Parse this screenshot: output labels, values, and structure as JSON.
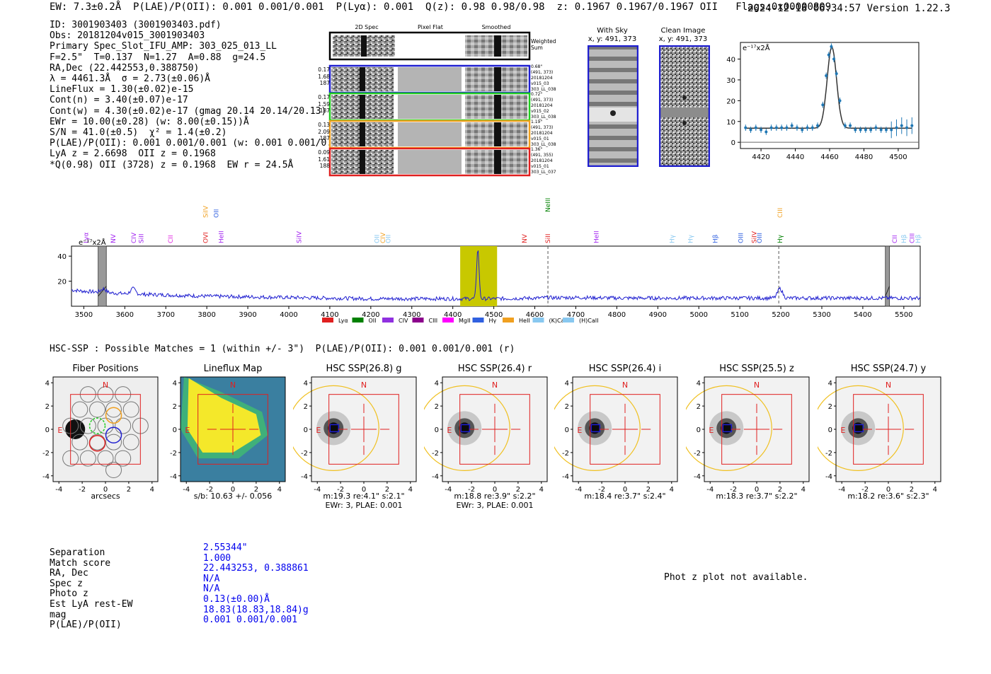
{
  "header": {
    "line": "EW: 7.3±0.2Å  P(LAE)/P(OII): 0.001 0.001/0.001  P(Lyα): 0.001  Q(z): 0.98 0.98/0.98  z: 0.1967 0.1967/0.1967 OII   Flags:0x00000809",
    "timestamp": "2024-12-18 06:34:57  Version 1.22.3"
  },
  "info": [
    "ID: 3001903403 (3001903403.pdf)",
    "Obs: 20181204v015_3001903403",
    "Primary Spec_Slot_IFU_AMP: 303_025_013_LL",
    "F=2.5\"  T=0.137  N=1.27  A=0.88  g=24.5",
    "RA,Dec (22.442553,0.388750)",
    "λ = 4461.3Å  σ = 2.73(±0.06)Å",
    "LineFlux = 1.30(±0.02)e-15",
    "Cont(n) = 3.40(±0.07)e-17",
    "Cont(w) = 4.30(±0.02)e-17 (gmag 20.14 20.14/20.13)",
    "EWr = 10.00(±0.28) (w: 8.00(±0.15))Å",
    "S/N = 41.0(±0.5)  χ² = 1.4(±0.2)",
    "P(LAE)/P(OII): 0.001 0.001/0.001 (w: 0.001 0.001/0.001)",
    "LyA z = 2.6698  OII z = 0.1968",
    "*Q(0.98) OII (3728) z = 0.1968  EW r = 24.5Å"
  ],
  "cutouts": {
    "col_titles": [
      "2D Spec",
      "Pixel Flat",
      "Smoothed"
    ],
    "weighted_label": "Weighted Sum",
    "rows": [
      {
        "left": [
          "0.17",
          "1.68",
          "187"
        ],
        "right": [
          "0.68\"",
          "(491, 373)",
          "20181204",
          "v015_03",
          "303_LL_038"
        ],
        "color": "#1f1fd0"
      },
      {
        "left": [
          "0.17",
          "1.59",
          "187"
        ],
        "right": [
          "0.72\"",
          "(491, 373)",
          "20181204",
          "v015_02",
          "303_LL_038"
        ],
        "color": "#22cc22"
      },
      {
        "left": [
          "0.13",
          "2.09",
          "187"
        ],
        "right": [
          "1.19\"",
          "(491, 373)",
          "20181204",
          "v015_01",
          "303_LL_038"
        ],
        "color": "#f0a020"
      },
      {
        "left": [
          "0.09",
          "1.61",
          "188"
        ],
        "right": [
          "1.36\"",
          "(491, 355)",
          "20181204",
          "v015_01",
          "303_LL_037"
        ],
        "color": "#e02020"
      }
    ]
  },
  "sky_panels": [
    {
      "title": "With Sky",
      "coords": "x, y: 491, 373"
    },
    {
      "title": "Clean Image",
      "coords": "x, y: 491, 373"
    }
  ],
  "colors": {
    "blue_line": "#1f1fd0",
    "fit_line": "#333333",
    "err_points": "#1f77b4",
    "highlight": "#c8c800",
    "match_text": "#0000ee",
    "red_box": "#e02020",
    "yellow_ellipse": "#f0c020"
  },
  "chart_data": [
    {
      "type": "scatter",
      "name": "line-fit",
      "ylabel": "e⁻¹⁷x2Å",
      "xlim": [
        4408,
        4512
      ],
      "ylim": [
        -3,
        48
      ],
      "xticks": [
        4420,
        4440,
        4460,
        4480,
        4500
      ],
      "yticks": [
        0,
        10,
        20,
        30,
        40
      ],
      "points": {
        "x": [
          4411,
          4414,
          4417,
          4420,
          4423,
          4426,
          4429,
          4432,
          4435,
          4438,
          4441,
          4444,
          4447,
          4450,
          4453,
          4456,
          4458,
          4459.5,
          4461,
          4462.5,
          4464,
          4466,
          4469,
          4472,
          4475,
          4478,
          4481,
          4484,
          4487,
          4490,
          4493,
          4496,
          4499,
          4502,
          4505,
          4508
        ],
        "y": [
          7,
          6,
          7,
          6,
          5,
          7,
          7,
          7,
          7,
          8,
          7,
          6,
          7,
          7,
          8,
          18,
          32,
          42,
          46,
          40,
          33,
          20,
          8,
          8,
          6,
          6,
          6,
          6,
          7,
          6,
          6,
          6,
          7,
          8,
          7,
          8
        ]
      },
      "fit": {
        "center": 4461.3,
        "sigma": 2.73,
        "amplitude": 39,
        "continuum": 6.8
      }
    },
    {
      "type": "line",
      "name": "full-spectrum",
      "ylabel": "e⁻¹⁷x2Å",
      "xlim": [
        3470,
        5540
      ],
      "ylim": [
        0,
        48
      ],
      "xticks": [
        3500,
        3600,
        3700,
        3800,
        3900,
        4000,
        4100,
        4200,
        4300,
        4400,
        4500,
        4600,
        4700,
        4800,
        4900,
        5000,
        5100,
        5200,
        5300,
        5400,
        5500
      ],
      "yticks": [
        20,
        40
      ],
      "continuum_profile": {
        "x": [
          3470,
          3500,
          3550,
          3600,
          3700,
          3800,
          3900,
          4000,
          4100,
          4200,
          4300,
          4400,
          4500,
          4600,
          4700,
          4800,
          4900,
          5000,
          5100,
          5200,
          5300,
          5400,
          5540
        ],
        "y": [
          13,
          12,
          11,
          10,
          9,
          8,
          7.5,
          7,
          6.5,
          6,
          6,
          6,
          6,
          6.5,
          7,
          6.5,
          6.5,
          6.5,
          6.5,
          6.5,
          6.5,
          6.5,
          6.5
        ]
      },
      "emission_peaks": [
        {
          "x": 3548,
          "y": 14
        },
        {
          "x": 3620,
          "y": 14
        },
        {
          "x": 4461,
          "y": 46
        },
        {
          "x": 4630,
          "y": 7
        },
        {
          "x": 5198,
          "y": 14
        }
      ],
      "highlight_range": [
        4418,
        4508
      ],
      "masked_ranges": [
        [
          3535,
          3555
        ],
        [
          5455,
          5465
        ]
      ],
      "dashed_lines": [
        4632,
        5195
      ],
      "line_labels": [
        {
          "text": "Lyα",
          "x": 3505,
          "color": "#a020f0",
          "row": 0
        },
        {
          "text": "NV",
          "x": 3572,
          "color": "#a020f0",
          "row": 0
        },
        {
          "text": "CIV",
          "x": 3622,
          "color": "#a020f0",
          "row": 0
        },
        {
          "text": "SiII",
          "x": 3640,
          "color": "#a020f0",
          "row": 0
        },
        {
          "text": "CII",
          "x": 3712,
          "color": "#e020e0",
          "row": 0
        },
        {
          "text": "SiIV",
          "x": 3797,
          "color": "#f0a020",
          "row": 1
        },
        {
          "text": "OII",
          "x": 3823,
          "color": "#3060e0",
          "row": 1
        },
        {
          "text": "OVI",
          "x": 3797,
          "color": "#e02020",
          "row": 0
        },
        {
          "text": "HeII",
          "x": 3835,
          "color": "#a020f0",
          "row": 0
        },
        {
          "text": "SiIV",
          "x": 4025,
          "color": "#a020f0",
          "row": 0
        },
        {
          "text": "OII",
          "x": 4215,
          "color": "#88c8f0",
          "row": 0
        },
        {
          "text": "CIV",
          "x": 4230,
          "color": "#f0a020",
          "row": 0
        },
        {
          "text": "OII",
          "x": 4243,
          "color": "#88c8f0",
          "row": 0
        },
        {
          "text": "NV",
          "x": 4575,
          "color": "#e02020",
          "row": 0
        },
        {
          "text": "NeIII",
          "x": 4632,
          "color": "#008000",
          "row": 2
        },
        {
          "text": "SiII",
          "x": 4632,
          "color": "#e02020",
          "row": 0
        },
        {
          "text": "HeII",
          "x": 4750,
          "color": "#a020f0",
          "row": 0
        },
        {
          "text": "Hγ",
          "x": 4935,
          "color": "#88c8f0",
          "row": 0
        },
        {
          "text": "Hγ",
          "x": 4980,
          "color": "#88c8f0",
          "row": 0
        },
        {
          "text": "Hβ",
          "x": 5040,
          "color": "#3060e0",
          "row": 0
        },
        {
          "text": "OIII",
          "x": 5102,
          "color": "#3060e0",
          "row": 0
        },
        {
          "text": "SiIV",
          "x": 5135,
          "color": "#e02020",
          "row": 0
        },
        {
          "text": "OIII",
          "x": 5148,
          "color": "#3060e0",
          "row": 0
        },
        {
          "text": "CIII",
          "x": 5198,
          "color": "#f0a020",
          "row": 1
        },
        {
          "text": "Hγ",
          "x": 5198,
          "color": "#008000",
          "row": 0
        },
        {
          "text": "CII",
          "x": 5478,
          "color": "#a020f0",
          "row": 0
        },
        {
          "text": "Hβ",
          "x": 5500,
          "color": "#88c8f0",
          "row": 0
        },
        {
          "text": "CIII",
          "x": 5520,
          "color": "#a020f0",
          "row": 0
        },
        {
          "text": "Hβ",
          "x": 5535,
          "color": "#88c8f0",
          "row": 0
        }
      ],
      "legend": [
        {
          "label": "Lyα",
          "color": "#e02020"
        },
        {
          "label": "OII",
          "color": "#008000"
        },
        {
          "label": "CIV",
          "color": "#9030e0"
        },
        {
          "label": "CIII",
          "color": "#8b008b"
        },
        {
          "label": "MgII",
          "color": "#ff00ff"
        },
        {
          "label": "Hγ",
          "color": "#3060e0"
        },
        {
          "label": "HeII",
          "color": "#f0a020"
        },
        {
          "label": "(K)CaII",
          "color": "#88c8f0"
        },
        {
          "label": "(H)CaII",
          "color": "#88c8f0"
        }
      ]
    }
  ],
  "hsc_header": "HSC-SSP : Possible Matches = 1 (within +/- 3\")  P(LAE)/P(OII): 0.001 0.001/0.001 (r)",
  "image_panels": [
    {
      "title": "Fiber Positions",
      "caption": "arcsecs",
      "caption2": ""
    },
    {
      "title": "Lineflux Map",
      "caption": "s/b: 10.63 +/- 0.056",
      "caption2": ""
    },
    {
      "title": "HSC SSP(26.8) g",
      "caption": "m:19.3  re:4.1\"  s:2.1\"",
      "caption2": "EWr: 3, PLAE: 0.001"
    },
    {
      "title": "HSC SSP(26.4) r",
      "caption": "m:18.8  re:3.9\"  s:2.2\"",
      "caption2": "EWr: 3, PLAE: 0.001"
    },
    {
      "title": "HSC SSP(26.4) i",
      "caption": "m:18.4  re:3.7\"  s:2.4\"",
      "caption2": ""
    },
    {
      "title": "HSC SSP(25.5) z",
      "caption": "m:18.3  re:3.7\"  s:2.2\"",
      "caption2": ""
    },
    {
      "title": "HSC SSP(24.7) y",
      "caption": "m:18.2  re:3.6\"  s:2.3\"",
      "caption2": ""
    }
  ],
  "image_axis": {
    "ticks": [
      -4,
      -2,
      0,
      2,
      4
    ],
    "N": "N",
    "E": "E"
  },
  "match_table": {
    "labels": [
      "Separation",
      "Match score",
      "RA, Dec",
      "Spec z",
      "Photo z",
      "Est LyA rest-EW",
      "mag",
      "P(LAE)/P(OII)"
    ],
    "values": [
      "2.55344\"",
      "1.000",
      "22.443253, 0.388861",
      "N/A",
      "N/A",
      "0.13(±0.00)Å",
      "18.83(18.83,18.84)g",
      "0.001 0.001/0.001"
    ]
  },
  "photz_note": "Phot z plot not available."
}
